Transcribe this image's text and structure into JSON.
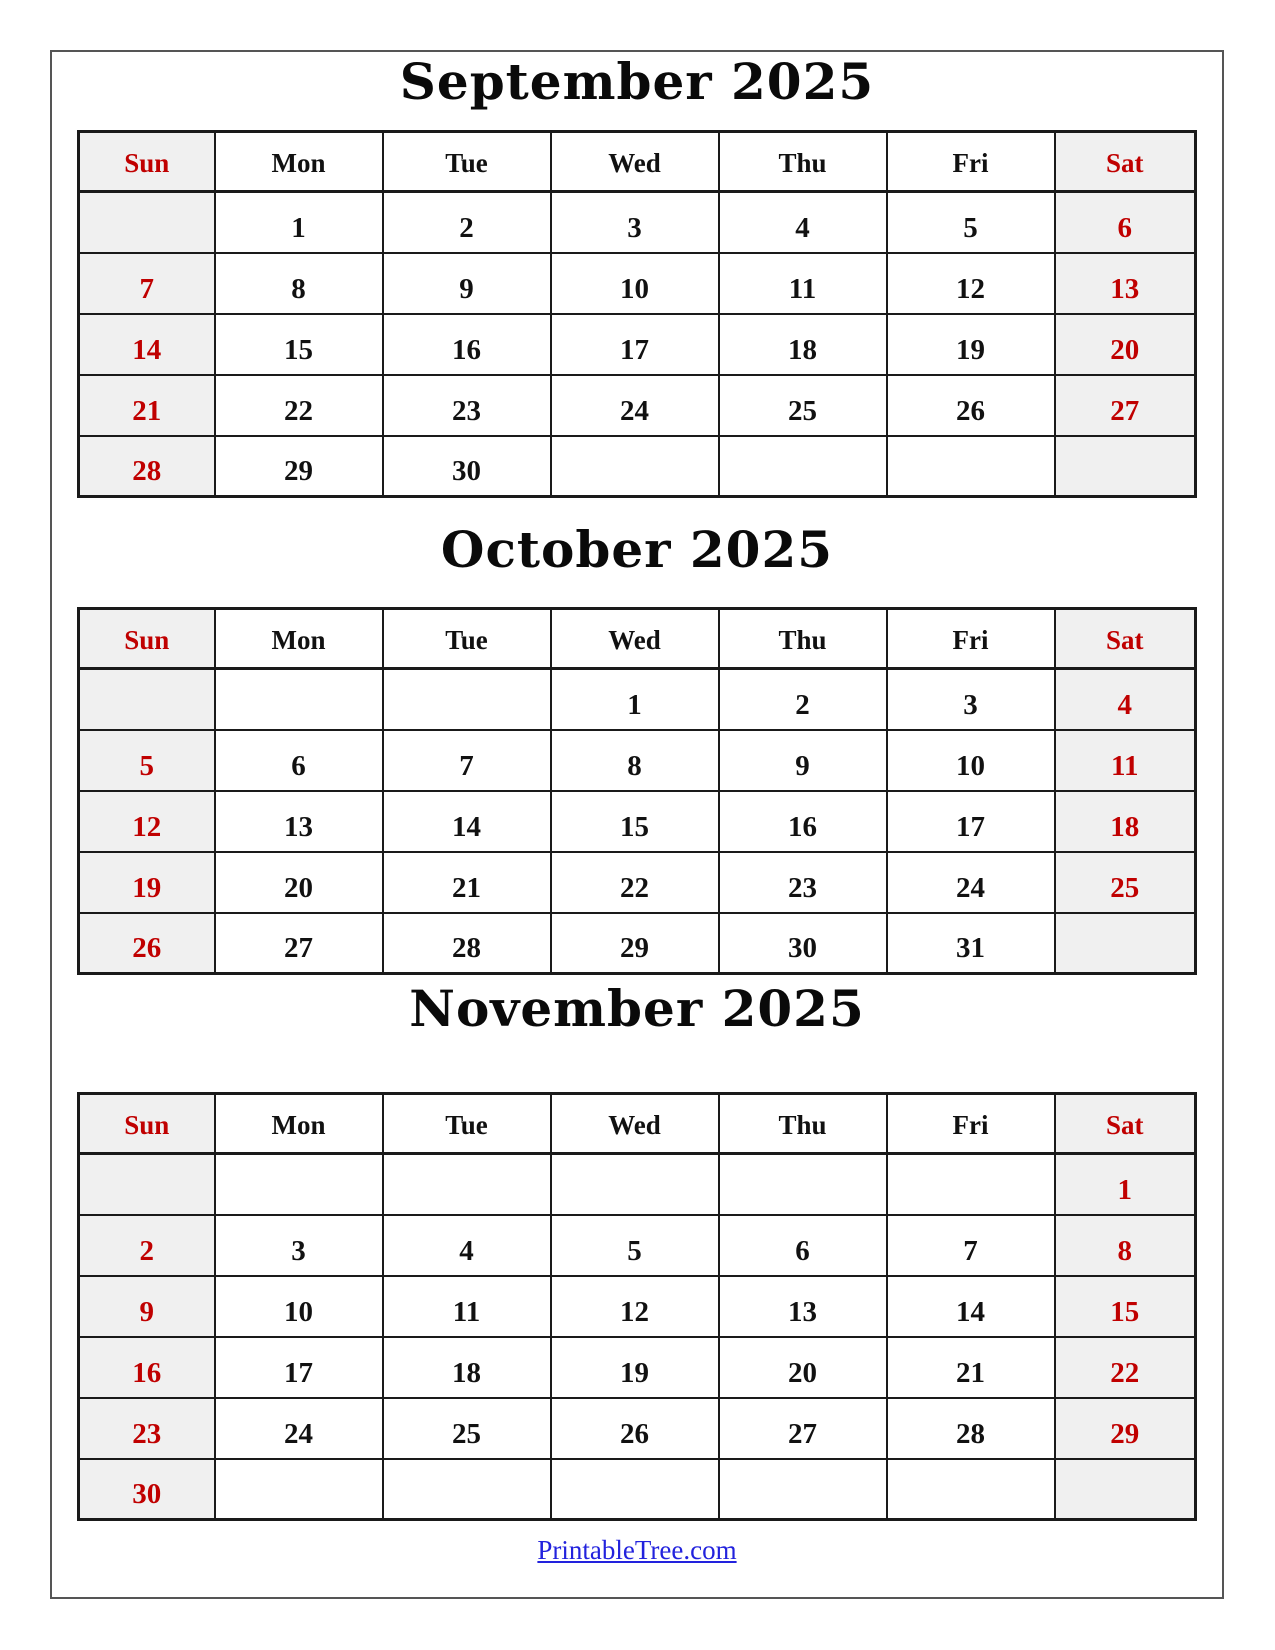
{
  "weekdays": [
    "Sun",
    "Mon",
    "Tue",
    "Wed",
    "Thu",
    "Fri",
    "Sat"
  ],
  "months": [
    {
      "title": "September 2025",
      "weeks": [
        [
          "",
          "1",
          "2",
          "3",
          "4",
          "5",
          "6"
        ],
        [
          "7",
          "8",
          "9",
          "10",
          "11",
          "12",
          "13"
        ],
        [
          "14",
          "15",
          "16",
          "17",
          "18",
          "19",
          "20"
        ],
        [
          "21",
          "22",
          "23",
          "24",
          "25",
          "26",
          "27"
        ],
        [
          "28",
          "29",
          "30",
          "",
          "",
          "",
          ""
        ]
      ]
    },
    {
      "title": "October 2025",
      "weeks": [
        [
          "",
          "",
          "",
          "1",
          "2",
          "3",
          "4"
        ],
        [
          "5",
          "6",
          "7",
          "8",
          "9",
          "10",
          "11"
        ],
        [
          "12",
          "13",
          "14",
          "15",
          "16",
          "17",
          "18"
        ],
        [
          "19",
          "20",
          "21",
          "22",
          "23",
          "24",
          "25"
        ],
        [
          "26",
          "27",
          "28",
          "29",
          "30",
          "31",
          ""
        ]
      ]
    },
    {
      "title": "November 2025",
      "weeks": [
        [
          "",
          "",
          "",
          "",
          "",
          "",
          "1"
        ],
        [
          "2",
          "3",
          "4",
          "5",
          "6",
          "7",
          "8"
        ],
        [
          "9",
          "10",
          "11",
          "12",
          "13",
          "14",
          "15"
        ],
        [
          "16",
          "17",
          "18",
          "19",
          "20",
          "21",
          "22"
        ],
        [
          "23",
          "24",
          "25",
          "26",
          "27",
          "28",
          "29"
        ],
        [
          "30",
          "",
          "",
          "",
          "",
          "",
          ""
        ]
      ]
    }
  ],
  "footer": {
    "link_text": "PrintableTree.com"
  },
  "colors": {
    "weekend_text": "#C00000",
    "weekend_bg": "#F0F0F0",
    "weekday_text": "#111111",
    "border": "#1A1A1A",
    "link": "#2222DD"
  }
}
